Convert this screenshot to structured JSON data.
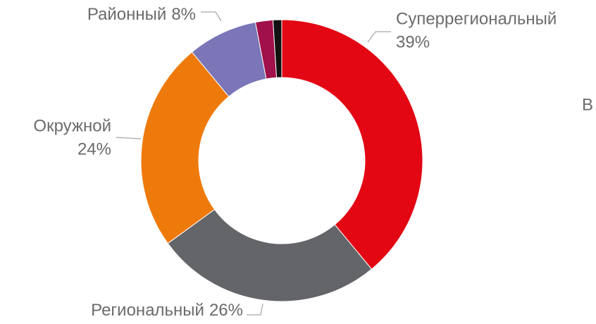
{
  "chart_data": {
    "type": "donut",
    "categories": [
      "Суперрегиональный",
      "Региональный",
      "Окружной",
      "Районный",
      null,
      null
    ],
    "values": [
      39,
      26,
      24,
      8,
      2,
      1
    ],
    "value_labels": [
      "39%",
      "26%",
      "24%",
      "8%",
      null,
      null
    ],
    "colors": [
      "#e30613",
      "#636569",
      "#ef7a0c",
      "#7a76b8",
      "#a0104a",
      "#111111"
    ],
    "annotation": "В"
  }
}
